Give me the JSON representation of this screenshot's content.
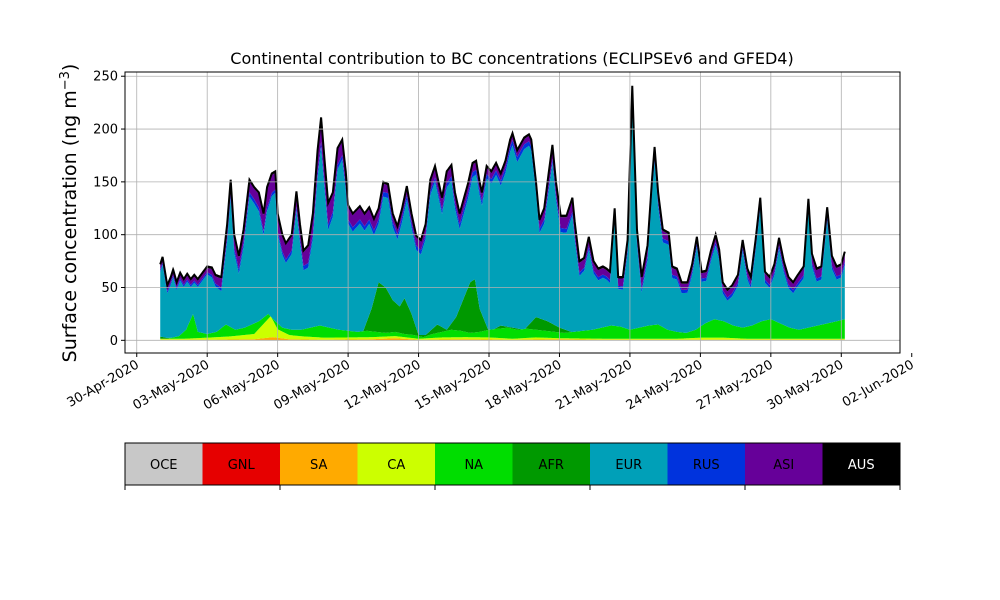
{
  "chart_data": {
    "type": "area",
    "title": "Continental contribution to BC concentrations (ECLIPSEv6 and GFED4)",
    "ylabel_main": "Surface concentration (ng m",
    "ylabel_exp": "−3",
    "ylabel_close": ")",
    "ylim": [
      -12,
      254
    ],
    "yticks": [
      0,
      50,
      100,
      150,
      200,
      250
    ],
    "x_range_days": [
      -0.5,
      32.5
    ],
    "grid": true,
    "x_tick_labels": [
      {
        "day": 0,
        "label": "30-Apr-2020"
      },
      {
        "day": 3,
        "label": "03-May-2020"
      },
      {
        "day": 6,
        "label": "06-May-2020"
      },
      {
        "day": 9,
        "label": "09-May-2020"
      },
      {
        "day": 12,
        "label": "12-May-2020"
      },
      {
        "day": 15,
        "label": "15-May-2020"
      },
      {
        "day": 18,
        "label": "18-May-2020"
      },
      {
        "day": 21,
        "label": "21-May-2020"
      },
      {
        "day": 24,
        "label": "24-May-2020"
      },
      {
        "day": 27,
        "label": "27-May-2020"
      },
      {
        "day": 30,
        "label": "30-May-2020"
      },
      {
        "day": 33,
        "label": "02-Jun-2020"
      }
    ],
    "total_curve": [
      [
        1.0,
        72
      ],
      [
        1.1,
        79
      ],
      [
        1.3,
        52
      ],
      [
        1.45,
        60
      ],
      [
        1.55,
        67
      ],
      [
        1.7,
        55
      ],
      [
        1.85,
        64
      ],
      [
        2.0,
        58
      ],
      [
        2.15,
        63
      ],
      [
        2.3,
        58
      ],
      [
        2.45,
        62
      ],
      [
        2.6,
        58
      ],
      [
        2.8,
        64
      ],
      [
        3.0,
        70
      ],
      [
        3.2,
        69
      ],
      [
        3.35,
        62
      ],
      [
        3.6,
        60
      ],
      [
        3.85,
        110
      ],
      [
        4.0,
        152
      ],
      [
        4.15,
        100
      ],
      [
        4.35,
        80
      ],
      [
        4.55,
        105
      ],
      [
        4.8,
        152
      ],
      [
        5.0,
        145
      ],
      [
        5.2,
        140
      ],
      [
        5.4,
        120
      ],
      [
        5.55,
        145
      ],
      [
        5.75,
        158
      ],
      [
        5.9,
        160
      ],
      [
        6.0,
        120
      ],
      [
        6.2,
        100
      ],
      [
        6.35,
        92
      ],
      [
        6.6,
        100
      ],
      [
        6.8,
        141
      ],
      [
        6.95,
        110
      ],
      [
        7.1,
        85
      ],
      [
        7.3,
        90
      ],
      [
        7.5,
        120
      ],
      [
        7.7,
        180
      ],
      [
        7.85,
        211
      ],
      [
        8.0,
        170
      ],
      [
        8.15,
        130
      ],
      [
        8.35,
        140
      ],
      [
        8.55,
        182
      ],
      [
        8.75,
        190
      ],
      [
        8.9,
        160
      ],
      [
        9.0,
        128
      ],
      [
        9.2,
        120
      ],
      [
        9.5,
        127
      ],
      [
        9.7,
        120
      ],
      [
        9.9,
        126
      ],
      [
        10.1,
        115
      ],
      [
        10.3,
        125
      ],
      [
        10.5,
        150
      ],
      [
        10.7,
        148
      ],
      [
        10.9,
        120
      ],
      [
        11.1,
        108
      ],
      [
        11.3,
        125
      ],
      [
        11.5,
        146
      ],
      [
        11.7,
        120
      ],
      [
        11.9,
        99
      ],
      [
        12.1,
        95
      ],
      [
        12.3,
        110
      ],
      [
        12.5,
        152
      ],
      [
        12.7,
        165
      ],
      [
        12.9,
        145
      ],
      [
        13.0,
        135
      ],
      [
        13.2,
        160
      ],
      [
        13.4,
        166
      ],
      [
        13.55,
        140
      ],
      [
        13.75,
        120
      ],
      [
        13.9,
        132
      ],
      [
        14.1,
        148
      ],
      [
        14.3,
        168
      ],
      [
        14.45,
        170
      ],
      [
        14.6,
        150
      ],
      [
        14.7,
        140
      ],
      [
        14.9,
        165
      ],
      [
        15.1,
        160
      ],
      [
        15.3,
        168
      ],
      [
        15.5,
        158
      ],
      [
        15.7,
        170
      ],
      [
        15.9,
        190
      ],
      [
        16.0,
        196
      ],
      [
        16.2,
        180
      ],
      [
        16.5,
        192
      ],
      [
        16.7,
        195
      ],
      [
        16.8,
        190
      ],
      [
        17.0,
        150
      ],
      [
        17.15,
        114
      ],
      [
        17.35,
        125
      ],
      [
        17.55,
        160
      ],
      [
        17.7,
        185
      ],
      [
        17.85,
        150
      ],
      [
        18.05,
        118
      ],
      [
        18.3,
        118
      ],
      [
        18.55,
        135
      ],
      [
        18.65,
        112
      ],
      [
        18.85,
        75
      ],
      [
        19.05,
        78
      ],
      [
        19.25,
        98
      ],
      [
        19.45,
        75
      ],
      [
        19.65,
        68
      ],
      [
        19.85,
        70
      ],
      [
        20.0,
        68
      ],
      [
        20.15,
        65
      ],
      [
        20.35,
        125
      ],
      [
        20.5,
        60
      ],
      [
        20.7,
        60
      ],
      [
        20.9,
        95
      ],
      [
        21.1,
        241
      ],
      [
        21.3,
        105
      ],
      [
        21.5,
        60
      ],
      [
        21.75,
        90
      ],
      [
        21.95,
        155
      ],
      [
        22.05,
        183
      ],
      [
        22.2,
        140
      ],
      [
        22.4,
        105
      ],
      [
        22.65,
        102
      ],
      [
        22.8,
        70
      ],
      [
        23.0,
        68
      ],
      [
        23.2,
        55
      ],
      [
        23.45,
        55
      ],
      [
        23.65,
        72
      ],
      [
        23.85,
        98
      ],
      [
        24.05,
        65
      ],
      [
        24.25,
        66
      ],
      [
        24.45,
        85
      ],
      [
        24.65,
        100
      ],
      [
        24.8,
        86
      ],
      [
        24.95,
        55
      ],
      [
        25.15,
        48
      ],
      [
        25.35,
        52
      ],
      [
        25.6,
        62
      ],
      [
        25.8,
        95
      ],
      [
        26.0,
        68
      ],
      [
        26.15,
        60
      ],
      [
        26.35,
        95
      ],
      [
        26.55,
        135
      ],
      [
        26.75,
        65
      ],
      [
        26.95,
        60
      ],
      [
        27.15,
        72
      ],
      [
        27.35,
        97
      ],
      [
        27.55,
        75
      ],
      [
        27.75,
        60
      ],
      [
        27.95,
        55
      ],
      [
        28.15,
        62
      ],
      [
        28.4,
        70
      ],
      [
        28.6,
        134
      ],
      [
        28.75,
        82
      ],
      [
        28.95,
        68
      ],
      [
        29.15,
        70
      ],
      [
        29.4,
        126
      ],
      [
        29.6,
        80
      ],
      [
        29.8,
        70
      ],
      [
        30.0,
        72
      ],
      [
        30.15,
        84
      ]
    ],
    "na_curve": [
      [
        1.0,
        0
      ],
      [
        1.4,
        2
      ],
      [
        1.8,
        4
      ],
      [
        2.1,
        10
      ],
      [
        2.4,
        25
      ],
      [
        2.6,
        8
      ],
      [
        3.0,
        6
      ],
      [
        3.4,
        8
      ],
      [
        3.8,
        15
      ],
      [
        4.2,
        10
      ],
      [
        4.6,
        12
      ],
      [
        5.2,
        18
      ],
      [
        5.6,
        25
      ],
      [
        5.9,
        18
      ],
      [
        6.2,
        12
      ],
      [
        6.6,
        10
      ],
      [
        7.0,
        10
      ],
      [
        7.4,
        12
      ],
      [
        7.8,
        14
      ],
      [
        8.2,
        12
      ],
      [
        8.6,
        10
      ],
      [
        9.0,
        9
      ],
      [
        9.4,
        8
      ],
      [
        9.8,
        9
      ],
      [
        10.2,
        8
      ],
      [
        10.6,
        7
      ],
      [
        11.0,
        8
      ],
      [
        11.4,
        6
      ],
      [
        11.8,
        5
      ],
      [
        12.2,
        3
      ],
      [
        12.6,
        6
      ],
      [
        13.0,
        8
      ],
      [
        13.4,
        10
      ],
      [
        13.8,
        9
      ],
      [
        14.2,
        7
      ],
      [
        14.6,
        8
      ],
      [
        15.0,
        10
      ],
      [
        15.4,
        11
      ],
      [
        15.8,
        12
      ],
      [
        16.2,
        10
      ],
      [
        16.6,
        11
      ],
      [
        17.0,
        10
      ],
      [
        17.4,
        9
      ],
      [
        17.8,
        8
      ],
      [
        18.2,
        7
      ],
      [
        18.6,
        8
      ],
      [
        19.0,
        9
      ],
      [
        19.4,
        10
      ],
      [
        19.8,
        12
      ],
      [
        20.2,
        14
      ],
      [
        20.6,
        13
      ],
      [
        21.0,
        10
      ],
      [
        21.4,
        12
      ],
      [
        21.8,
        14
      ],
      [
        22.2,
        15
      ],
      [
        22.6,
        10
      ],
      [
        23.0,
        8
      ],
      [
        23.4,
        7
      ],
      [
        23.8,
        10
      ],
      [
        24.2,
        16
      ],
      [
        24.6,
        20
      ],
      [
        25.0,
        18
      ],
      [
        25.4,
        14
      ],
      [
        25.8,
        12
      ],
      [
        26.2,
        14
      ],
      [
        26.6,
        18
      ],
      [
        27.0,
        20
      ],
      [
        27.4,
        16
      ],
      [
        27.8,
        12
      ],
      [
        28.2,
        10
      ],
      [
        28.6,
        12
      ],
      [
        29.0,
        14
      ],
      [
        29.4,
        16
      ],
      [
        29.8,
        18
      ],
      [
        30.15,
        20
      ]
    ],
    "afr_curve": [
      [
        1.0,
        2
      ],
      [
        2.0,
        3
      ],
      [
        3.0,
        3
      ],
      [
        4.0,
        3
      ],
      [
        5.0,
        5
      ],
      [
        6.0,
        4
      ],
      [
        7.0,
        4
      ],
      [
        8.0,
        5
      ],
      [
        9.0,
        4
      ],
      [
        9.6,
        6
      ],
      [
        10.0,
        30
      ],
      [
        10.3,
        55
      ],
      [
        10.6,
        50
      ],
      [
        10.9,
        38
      ],
      [
        11.2,
        32
      ],
      [
        11.4,
        40
      ],
      [
        11.7,
        25
      ],
      [
        12.0,
        5
      ],
      [
        12.3,
        5
      ],
      [
        12.8,
        15
      ],
      [
        13.2,
        10
      ],
      [
        13.6,
        22
      ],
      [
        14.0,
        44
      ],
      [
        14.2,
        55
      ],
      [
        14.4,
        58
      ],
      [
        14.6,
        30
      ],
      [
        15.0,
        8
      ],
      [
        15.5,
        14
      ],
      [
        16.0,
        12
      ],
      [
        16.5,
        10
      ],
      [
        17.0,
        22
      ],
      [
        17.5,
        18
      ],
      [
        18.0,
        12
      ],
      [
        18.5,
        8
      ],
      [
        19.0,
        6
      ],
      [
        20.0,
        5
      ],
      [
        21.0,
        4
      ],
      [
        22.0,
        4
      ],
      [
        23.0,
        3
      ],
      [
        24.0,
        3
      ],
      [
        25.0,
        3
      ],
      [
        26.0,
        3
      ],
      [
        27.0,
        3
      ],
      [
        28.0,
        3
      ],
      [
        29.0,
        3
      ],
      [
        30.15,
        3
      ]
    ],
    "ca_curve": [
      [
        1.0,
        1
      ],
      [
        2.0,
        1
      ],
      [
        3.0,
        2
      ],
      [
        4.0,
        3
      ],
      [
        5.0,
        5
      ],
      [
        5.7,
        20
      ],
      [
        6.0,
        8
      ],
      [
        6.5,
        4
      ],
      [
        7.0,
        3
      ],
      [
        8.0,
        2
      ],
      [
        9.0,
        2
      ],
      [
        10.0,
        2
      ],
      [
        11.0,
        2
      ],
      [
        12.0,
        1
      ],
      [
        13.0,
        2
      ],
      [
        14.0,
        2
      ],
      [
        15.0,
        2
      ],
      [
        16.0,
        1
      ],
      [
        17.0,
        2
      ],
      [
        18.0,
        1
      ],
      [
        19.0,
        1
      ],
      [
        20.0,
        1
      ],
      [
        21.0,
        1
      ],
      [
        22.0,
        1
      ],
      [
        23.0,
        1
      ],
      [
        24.0,
        2
      ],
      [
        25.0,
        2
      ],
      [
        26.0,
        1
      ],
      [
        27.0,
        1
      ],
      [
        28.0,
        1
      ],
      [
        29.0,
        1
      ],
      [
        30.15,
        1
      ]
    ],
    "sa_curve": [
      [
        1.0,
        0.5
      ],
      [
        3.0,
        0.5
      ],
      [
        5.0,
        1
      ],
      [
        5.8,
        3
      ],
      [
        6.5,
        1
      ],
      [
        8.0,
        0.5
      ],
      [
        10.0,
        1
      ],
      [
        11.0,
        2
      ],
      [
        12.0,
        0.5
      ],
      [
        14.0,
        1
      ],
      [
        16.0,
        0.5
      ],
      [
        18.0,
        1
      ],
      [
        20.0,
        0.5
      ],
      [
        22.0,
        0.5
      ],
      [
        24.0,
        0.5
      ],
      [
        26.0,
        0.5
      ],
      [
        28.0,
        0.5
      ],
      [
        30.15,
        0.5
      ]
    ],
    "rus_band": [
      [
        1.0,
        2
      ],
      [
        2.0,
        2
      ],
      [
        3.0,
        2
      ],
      [
        4.0,
        4
      ],
      [
        5.0,
        4
      ],
      [
        6.0,
        3
      ],
      [
        7.0,
        4
      ],
      [
        8.0,
        5
      ],
      [
        9.0,
        4
      ],
      [
        10.0,
        4
      ],
      [
        11.0,
        5
      ],
      [
        12.0,
        4
      ],
      [
        13.0,
        4
      ],
      [
        14.0,
        5
      ],
      [
        15.0,
        4
      ],
      [
        16.0,
        5
      ],
      [
        17.0,
        4
      ],
      [
        18.0,
        4
      ],
      [
        19.0,
        3
      ],
      [
        20.0,
        3
      ],
      [
        21.0,
        3
      ],
      [
        22.0,
        4
      ],
      [
        23.0,
        3
      ],
      [
        24.0,
        3
      ],
      [
        25.0,
        3
      ],
      [
        26.0,
        3
      ],
      [
        27.0,
        3
      ],
      [
        28.0,
        3
      ],
      [
        29.0,
        3
      ],
      [
        30.15,
        3
      ]
    ],
    "asi_band": [
      [
        1.0,
        4
      ],
      [
        2.0,
        4
      ],
      [
        3.0,
        4
      ],
      [
        4.0,
        12
      ],
      [
        5.0,
        10
      ],
      [
        5.6,
        18
      ],
      [
        6.0,
        15
      ],
      [
        7.0,
        12
      ],
      [
        7.9,
        22
      ],
      [
        8.6,
        14
      ],
      [
        9.0,
        12
      ],
      [
        10.0,
        10
      ],
      [
        11.0,
        6
      ],
      [
        12.0,
        8
      ],
      [
        13.0,
        10
      ],
      [
        14.0,
        8
      ],
      [
        15.0,
        6
      ],
      [
        16.0,
        5
      ],
      [
        17.0,
        5
      ],
      [
        17.6,
        12
      ],
      [
        18.0,
        10
      ],
      [
        18.6,
        12
      ],
      [
        19.0,
        8
      ],
      [
        20.0,
        6
      ],
      [
        21.0,
        8
      ],
      [
        21.4,
        10
      ],
      [
        22.0,
        8
      ],
      [
        23.0,
        6
      ],
      [
        24.0,
        5
      ],
      [
        25.0,
        6
      ],
      [
        26.0,
        6
      ],
      [
        27.0,
        6
      ],
      [
        28.0,
        6
      ],
      [
        29.0,
        8
      ],
      [
        30.15,
        8
      ]
    ],
    "aus_band": [
      [
        1.0,
        1.5
      ],
      [
        30.15,
        1.5
      ]
    ],
    "legend": [
      {
        "label": "OCE",
        "color": "#c8c8c8"
      },
      {
        "label": "GNL",
        "color": "#e60000"
      },
      {
        "label": "SA",
        "color": "#ffaa00"
      },
      {
        "label": "CA",
        "color": "#ccff00"
      },
      {
        "label": "NA",
        "color": "#00dd00"
      },
      {
        "label": "AFR",
        "color": "#009900"
      },
      {
        "label": "EUR",
        "color": "#00a0b8"
      },
      {
        "label": "RUS",
        "color": "#0033dd"
      },
      {
        "label": "ASI",
        "color": "#660099"
      },
      {
        "label": "AUS",
        "color": "#000000"
      }
    ]
  }
}
